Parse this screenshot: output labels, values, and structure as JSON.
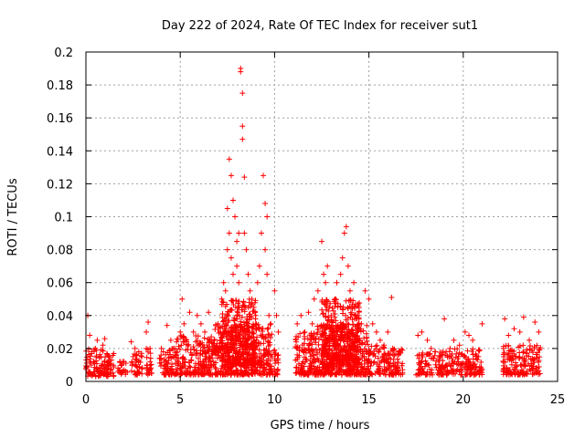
{
  "chart_data": {
    "type": "scatter",
    "title": "Day 222 of 2024, Rate Of TEC Index for receiver sut1",
    "xlabel": "GPS time / hours",
    "ylabel": "ROTI / TECUs",
    "xlim": [
      0,
      25
    ],
    "ylim": [
      0,
      0.2
    ],
    "xticks": [
      0,
      5,
      10,
      15,
      20,
      25
    ],
    "xtick_labels": [
      "0",
      "5",
      "10",
      "15",
      "20",
      "25"
    ],
    "yticks": [
      0,
      0.02,
      0.04,
      0.06,
      0.08,
      0.1,
      0.12,
      0.14,
      0.16,
      0.18,
      0.2
    ],
    "ytick_labels": [
      "0",
      "0.02",
      "0.04",
      "0.06",
      "0.08",
      "0.1",
      "0.12",
      "0.14",
      "0.16",
      "0.18",
      "0.2"
    ],
    "grid": true,
    "marker": "+",
    "color": "#ff0000",
    "series": [
      {
        "name": "sut1",
        "x": [
          0.1,
          0.2,
          0.3,
          0.4,
          0.5,
          0.6,
          0.8,
          0.9,
          1.0,
          1.2,
          1.3,
          1.7,
          1.8,
          1.9,
          2.4,
          2.5,
          2.6,
          2.8,
          3.2,
          3.3,
          3.4,
          3.4,
          3.9,
          4.0,
          4.1,
          4.3,
          4.5,
          4.7,
          5.0,
          5.1,
          5.2,
          5.3,
          5.5,
          5.7,
          5.9,
          6.1,
          6.3,
          6.5,
          6.8,
          7.0,
          7.2,
          7.3,
          7.4,
          7.5,
          7.5,
          7.6,
          7.6,
          7.7,
          7.7,
          7.8,
          7.8,
          7.9,
          8.0,
          8.0,
          8.1,
          8.1,
          8.2,
          8.2,
          8.3,
          8.3,
          8.3,
          8.4,
          8.4,
          8.5,
          8.6,
          8.7,
          8.8,
          8.9,
          9.0,
          9.1,
          9.2,
          9.3,
          9.4,
          9.5,
          9.5,
          9.6,
          9.6,
          9.7,
          9.8,
          10.0,
          10.1,
          10.2,
          11.2,
          11.4,
          11.6,
          11.8,
          12.0,
          12.1,
          12.3,
          12.5,
          12.6,
          12.7,
          12.8,
          12.9,
          13.0,
          13.2,
          13.3,
          13.5,
          13.6,
          13.7,
          13.8,
          13.9,
          14.0,
          14.1,
          14.2,
          14.4,
          14.6,
          14.8,
          15.0,
          15.2,
          15.4,
          15.6,
          15.8,
          16.0,
          16.2,
          16.6,
          17.6,
          17.8,
          18.1,
          18.3,
          18.5,
          18.8,
          19.0,
          19.3,
          19.5,
          19.8,
          20.1,
          20.3,
          20.5,
          20.8,
          21.0,
          22.2,
          22.4,
          22.7,
          23.0,
          23.2,
          23.5,
          23.8,
          24.0
        ],
        "y": [
          0.04,
          0.028,
          0.018,
          0.012,
          0.02,
          0.025,
          0.015,
          0.022,
          0.026,
          0.012,
          0.01,
          0.008,
          0.012,
          0.01,
          0.024,
          0.015,
          0.02,
          0.018,
          0.03,
          0.036,
          0.02,
          0.012,
          0.014,
          0.02,
          0.018,
          0.034,
          0.025,
          0.02,
          0.03,
          0.05,
          0.035,
          0.025,
          0.042,
          0.03,
          0.04,
          0.035,
          0.03,
          0.042,
          0.025,
          0.035,
          0.05,
          0.06,
          0.055,
          0.08,
          0.105,
          0.09,
          0.135,
          0.075,
          0.125,
          0.065,
          0.11,
          0.1,
          0.085,
          0.07,
          0.06,
          0.09,
          0.19,
          0.188,
          0.175,
          0.155,
          0.147,
          0.124,
          0.09,
          0.08,
          0.065,
          0.055,
          0.05,
          0.045,
          0.04,
          0.06,
          0.07,
          0.09,
          0.125,
          0.108,
          0.08,
          0.1,
          0.065,
          0.04,
          0.035,
          0.055,
          0.04,
          0.03,
          0.035,
          0.04,
          0.03,
          0.042,
          0.035,
          0.05,
          0.055,
          0.085,
          0.065,
          0.06,
          0.07,
          0.045,
          0.04,
          0.05,
          0.06,
          0.065,
          0.075,
          0.09,
          0.094,
          0.07,
          0.055,
          0.045,
          0.06,
          0.04,
          0.035,
          0.055,
          0.05,
          0.035,
          0.03,
          0.025,
          0.022,
          0.03,
          0.051,
          0.018,
          0.028,
          0.03,
          0.025,
          0.02,
          0.018,
          0.015,
          0.038,
          0.02,
          0.025,
          0.022,
          0.03,
          0.028,
          0.025,
          0.015,
          0.035,
          0.038,
          0.028,
          0.032,
          0.03,
          0.039,
          0.025,
          0.036,
          0.03
        ],
        "bands": [
          {
            "x": [
              0.0,
              1.5
            ],
            "y": [
              0.003,
              0.02
            ]
          },
          {
            "x": [
              1.7,
              2.2
            ],
            "y": [
              0.004,
              0.012
            ]
          },
          {
            "x": [
              2.4,
              3.0
            ],
            "y": [
              0.004,
              0.018
            ]
          },
          {
            "x": [
              3.2,
              3.5
            ],
            "y": [
              0.004,
              0.022
            ]
          },
          {
            "x": [
              3.9,
              4.7
            ],
            "y": [
              0.004,
              0.02
            ]
          },
          {
            "x": [
              4.7,
              6.8
            ],
            "y": [
              0.004,
              0.028
            ]
          },
          {
            "x": [
              6.8,
              9.9
            ],
            "y": [
              0.004,
              0.035
            ]
          },
          {
            "x": [
              7.2,
              9.0
            ],
            "y": [
              0.01,
              0.05
            ]
          },
          {
            "x": [
              9.9,
              10.2
            ],
            "y": [
              0.004,
              0.02
            ]
          },
          {
            "x": [
              11.1,
              12.2
            ],
            "y": [
              0.004,
              0.03
            ]
          },
          {
            "x": [
              12.2,
              15.0
            ],
            "y": [
              0.004,
              0.035
            ]
          },
          {
            "x": [
              12.5,
              14.5
            ],
            "y": [
              0.01,
              0.05
            ]
          },
          {
            "x": [
              15.0,
              16.8
            ],
            "y": [
              0.004,
              0.022
            ]
          },
          {
            "x": [
              17.5,
              19.0
            ],
            "y": [
              0.004,
              0.018
            ]
          },
          {
            "x": [
              19.0,
              21.0
            ],
            "y": [
              0.004,
              0.02
            ]
          },
          {
            "x": [
              22.1,
              24.1
            ],
            "y": [
              0.004,
              0.022
            ]
          }
        ]
      }
    ]
  }
}
